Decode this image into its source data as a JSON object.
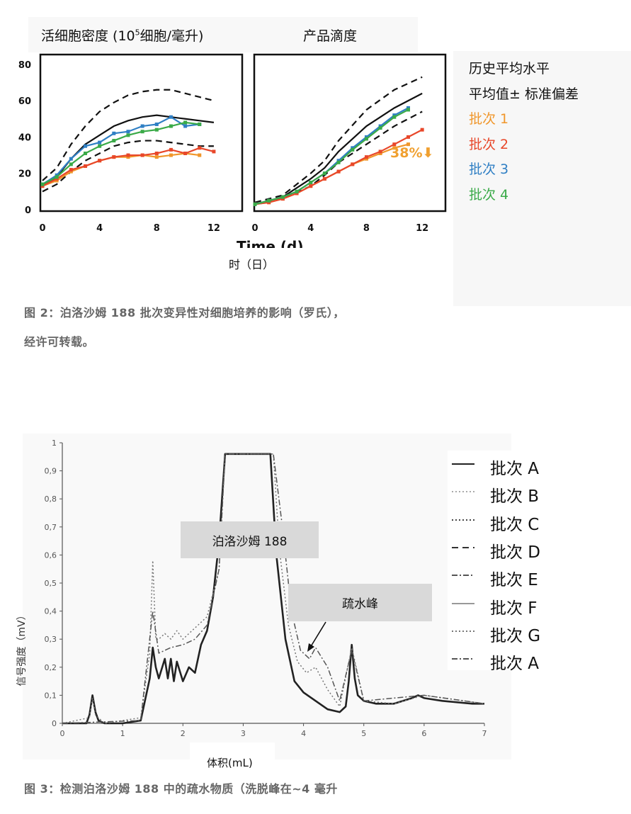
{
  "figure2": {
    "panel_left_title_a": "活细胞密度 (10",
    "panel_left_title_sup": "5",
    "panel_left_title_b": "细胞/毫升)",
    "panel_right_title": "产品滴度",
    "xaxis_label_en": "Time (d)",
    "xaxis_label_cn": "时（日）",
    "annotation_38": "38%",
    "legend": [
      {
        "label": "历史平均水平",
        "color": "#111111"
      },
      {
        "label": "平均值± 标准偏差",
        "color": "#111111"
      },
      {
        "label": "批次 1",
        "color": "#f0962a"
      },
      {
        "label": "批次 2",
        "color": "#e8472a"
      },
      {
        "label": "批次 3",
        "color": "#2f7fc4"
      },
      {
        "label": "批次 4",
        "color": "#3aaa48"
      }
    ],
    "caption_line1": "图 2：泊洛沙姆 188 批次变异性对细胞培养的影响（罗氏），",
    "caption_line2": "经许可转载。"
  },
  "figure3": {
    "yaxis_label": "信号强度（mV）",
    "xaxis_label": "体积(mL)",
    "box_label_1": "泊洛沙姆 188",
    "box_label_2": "疏水峰",
    "legend": [
      "批次 A",
      "批次 B",
      "批次 C",
      "批次 D",
      "批次 E",
      "批次 F",
      "批次 G",
      "批次 A"
    ],
    "caption": "图 3：检测泊洛沙姆 188 中的疏水物质（洗脱峰在~4 毫升"
  },
  "chart_data": [
    {
      "type": "line",
      "title": "活细胞密度 (10^5细胞/毫升)",
      "xlabel": "Time (d)",
      "xlim": [
        0,
        12.5
      ],
      "ylim": [
        0,
        85
      ],
      "x_ticks": [
        0,
        4,
        8,
        12
      ],
      "y_ticks": [
        0,
        20,
        40,
        60,
        80
      ],
      "y_tick_labels": [
        "0",
        "20",
        "40",
        "60",
        "80"
      ],
      "series": [
        {
          "name": "历史平均水平",
          "style": "solid",
          "color": "#111111",
          "x": [
            0,
            1,
            2,
            3,
            4,
            5,
            6,
            7,
            8,
            9,
            10,
            11,
            12
          ],
          "y": [
            13,
            18,
            28,
            36,
            41,
            46,
            49,
            51,
            52,
            51,
            50,
            49,
            48
          ]
        },
        {
          "name": "平均值± 标准偏差",
          "style": "dashed",
          "color": "#111111",
          "x": [
            0,
            1,
            2,
            3,
            4,
            5,
            6,
            7,
            8,
            9,
            10,
            11,
            12
          ],
          "y": [
            16,
            23,
            36,
            46,
            54,
            59,
            63,
            65,
            66,
            66,
            64,
            62,
            60
          ]
        },
        {
          "name": "平均值± 标准偏差",
          "style": "dashed",
          "color": "#111111",
          "x": [
            0,
            1,
            2,
            3,
            4,
            5,
            6,
            7,
            8,
            9,
            10,
            11,
            12
          ],
          "y": [
            10,
            14,
            21,
            27,
            31,
            35,
            37,
            38,
            38,
            37,
            36,
            35,
            35
          ]
        },
        {
          "name": "批次 1",
          "color": "#f0962a",
          "x": [
            0,
            1,
            2,
            3,
            4,
            5,
            6,
            7,
            8,
            9,
            10,
            11
          ],
          "y": [
            13,
            16,
            21,
            24,
            27,
            29,
            29,
            30,
            29,
            30,
            31,
            30
          ]
        },
        {
          "name": "批次 2",
          "color": "#e8472a",
          "x": [
            0,
            1,
            2,
            3,
            4,
            5,
            6,
            7,
            8,
            9,
            10,
            11,
            12
          ],
          "y": [
            13,
            17,
            22,
            24,
            27,
            29,
            30,
            30,
            31,
            33,
            31,
            34,
            32
          ]
        },
        {
          "name": "批次 3",
          "color": "#2f7fc4",
          "x": [
            0,
            1,
            2,
            3,
            4,
            5,
            6,
            7,
            8,
            9,
            10,
            11
          ],
          "y": [
            14,
            19,
            28,
            35,
            37,
            42,
            43,
            46,
            47,
            51,
            46,
            47
          ]
        },
        {
          "name": "批次 4",
          "color": "#3aaa48",
          "x": [
            0,
            1,
            2,
            3,
            4,
            5,
            6,
            7,
            8,
            9,
            10,
            11
          ],
          "y": [
            14,
            18,
            25,
            31,
            35,
            38,
            41,
            43,
            44,
            46,
            48,
            47
          ]
        }
      ]
    },
    {
      "type": "line",
      "title": "产品滴度",
      "xlabel": "Time (d)",
      "xlim": [
        0,
        12.5
      ],
      "ylim": [
        0,
        85
      ],
      "x_ticks": [
        0,
        4,
        8,
        12
      ],
      "annotation": "38%",
      "series": [
        {
          "name": "历史平均水平",
          "style": "solid",
          "color": "#111111",
          "x": [
            0,
            2,
            4,
            5,
            6,
            8,
            10,
            12
          ],
          "y": [
            3,
            7,
            17,
            23,
            32,
            46,
            56,
            64
          ]
        },
        {
          "name": "平均值± 标准偏差",
          "style": "dashed",
          "color": "#111111",
          "x": [
            0,
            2,
            4,
            5,
            6,
            8,
            10,
            12
          ],
          "y": [
            4,
            8,
            20,
            27,
            38,
            55,
            66,
            73
          ]
        },
        {
          "name": "平均值± 标准偏差",
          "style": "dashed",
          "color": "#111111",
          "x": [
            0,
            2,
            4,
            5,
            6,
            8,
            10,
            12
          ],
          "y": [
            3,
            6,
            13,
            19,
            26,
            36,
            46,
            54
          ]
        },
        {
          "name": "批次 1",
          "color": "#f0962a",
          "x": [
            0,
            1,
            2,
            3,
            4,
            5,
            6,
            7,
            8,
            9,
            10,
            11
          ],
          "y": [
            3,
            4,
            6,
            9,
            13,
            17,
            21,
            25,
            28,
            31,
            34,
            36
          ]
        },
        {
          "name": "批次 2",
          "color": "#e8472a",
          "x": [
            0,
            1,
            2,
            3,
            4,
            5,
            6,
            7,
            8,
            9,
            10,
            11,
            12
          ],
          "y": [
            3,
            4,
            6,
            9,
            13,
            17,
            21,
            25,
            29,
            32,
            36,
            40,
            44
          ]
        },
        {
          "name": "批次 3",
          "color": "#2f7fc4",
          "x": [
            0,
            1,
            2,
            3,
            4,
            5,
            6,
            7,
            8,
            9,
            10,
            11
          ],
          "y": [
            3,
            5,
            7,
            10,
            15,
            20,
            27,
            34,
            40,
            46,
            52,
            56
          ]
        },
        {
          "name": "批次 4",
          "color": "#3aaa48",
          "x": [
            0,
            1,
            2,
            3,
            4,
            5,
            6,
            7,
            8,
            9,
            10,
            11
          ],
          "y": [
            3,
            5,
            7,
            10,
            15,
            20,
            26,
            33,
            39,
            45,
            51,
            55
          ]
        }
      ]
    },
    {
      "type": "line",
      "xlabel": "体积(mL)",
      "ylabel": "信号强度（mV）",
      "xlim": [
        0,
        7
      ],
      "ylim": [
        0,
        1
      ],
      "x_ticks": [
        0,
        1,
        2,
        3,
        4,
        5,
        6,
        7
      ],
      "y_ticks": [
        0,
        0.1,
        0.2,
        0.3,
        0.4,
        0.5,
        0.6,
        0.7,
        0.8,
        0.9,
        1
      ],
      "y_tick_labels": [
        "0",
        "0,1",
        "0,2",
        "0,3",
        "0,4",
        "0,5",
        "0,6",
        "0,7",
        "0,8",
        "0,9",
        "1"
      ],
      "series": [
        {
          "name": "批次 A",
          "style": "solid",
          "color": "#222222",
          "x": [
            0,
            0.4,
            0.45,
            0.5,
            0.55,
            0.6,
            0.7,
            1.0,
            1.3,
            1.45,
            1.5,
            1.55,
            1.6,
            1.7,
            1.75,
            1.8,
            1.85,
            1.9,
            2.0,
            2.1,
            2.2,
            2.3,
            2.4,
            2.5,
            2.6,
            2.7,
            3.45,
            3.55,
            3.7,
            3.85,
            4.0,
            4.2,
            4.4,
            4.6,
            4.7,
            4.75,
            4.8,
            4.85,
            4.9,
            5.0,
            5.2,
            5.5,
            5.8,
            5.9,
            6.0,
            6.3,
            6.8,
            7.0
          ],
          "y": [
            0,
            0,
            0.03,
            0.1,
            0.04,
            0.01,
            0,
            0,
            0.01,
            0.16,
            0.27,
            0.2,
            0.16,
            0.23,
            0.16,
            0.23,
            0.15,
            0.22,
            0.15,
            0.2,
            0.18,
            0.28,
            0.33,
            0.45,
            0.65,
            0.96,
            0.96,
            0.6,
            0.3,
            0.15,
            0.11,
            0.08,
            0.05,
            0.04,
            0.06,
            0.15,
            0.28,
            0.16,
            0.1,
            0.08,
            0.07,
            0.07,
            0.09,
            0.1,
            0.09,
            0.08,
            0.07,
            0.07
          ]
        },
        {
          "name": "批次 B",
          "style": "dotted",
          "color": "#777777",
          "x": [
            0,
            0.45,
            0.5,
            0.55,
            0.7,
            1.3,
            1.45,
            1.5,
            1.55,
            1.6,
            1.7,
            1.8,
            1.9,
            2.0,
            2.2,
            2.4,
            2.6,
            2.7,
            3.5,
            3.6,
            3.75,
            3.9,
            4.05,
            4.2,
            4.4,
            4.6,
            4.8,
            5.0,
            5.5,
            6.0,
            7.0
          ],
          "y": [
            0,
            0.02,
            0.09,
            0.03,
            0,
            0.02,
            0.25,
            0.58,
            0.3,
            0.3,
            0.32,
            0.3,
            0.33,
            0.3,
            0.34,
            0.38,
            0.55,
            0.96,
            0.96,
            0.62,
            0.35,
            0.22,
            0.18,
            0.2,
            0.12,
            0.06,
            0.27,
            0.08,
            0.07,
            0.1,
            0.07
          ]
        },
        {
          "name": "批次 D",
          "style": "dashdot",
          "color": "#555555",
          "x": [
            0,
            1.3,
            1.5,
            1.6,
            1.8,
            2.0,
            2.2,
            2.4,
            2.6,
            2.7,
            3.5,
            3.65,
            3.8,
            3.95,
            4.1,
            4.2,
            4.4,
            4.6,
            4.8,
            5.0,
            6.0,
            7.0
          ],
          "y": [
            0,
            0.01,
            0.4,
            0.25,
            0.27,
            0.28,
            0.3,
            0.35,
            0.55,
            0.96,
            0.96,
            0.7,
            0.4,
            0.26,
            0.23,
            0.27,
            0.2,
            0.08,
            0.26,
            0.08,
            0.1,
            0.07
          ]
        }
      ]
    }
  ]
}
